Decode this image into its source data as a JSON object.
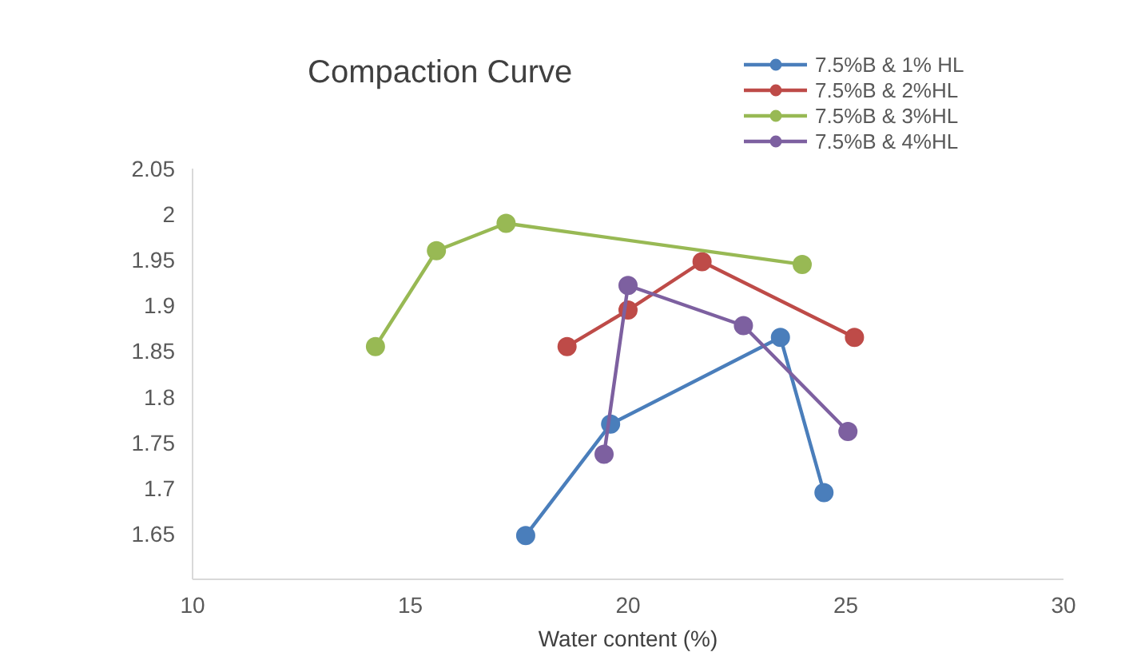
{
  "chart_data": {
    "type": "line",
    "title": "Compaction Curve",
    "xlabel": "Water content (%)",
    "xlim": [
      10,
      30
    ],
    "xticks": [
      10,
      15,
      20,
      25,
      30
    ],
    "ylim": [
      1.6,
      2.05
    ],
    "yticks": [
      1.65,
      1.7,
      1.75,
      1.8,
      1.85,
      1.9,
      1.95,
      2,
      2.05
    ],
    "grid": false,
    "legend": "top right",
    "marker": "circle",
    "line_style": "solid",
    "series": [
      {
        "name": "7.5%B & 1% HL",
        "color": "#4a7ebb",
        "x": [
          17.65,
          19.6,
          23.5,
          24.5
        ],
        "values": [
          1.648,
          1.77,
          1.865,
          1.695
        ]
      },
      {
        "name": "7.5%B & 2%HL",
        "color": "#be4b48",
        "x": [
          18.6,
          20.0,
          21.7,
          25.2
        ],
        "values": [
          1.855,
          1.895,
          1.948,
          1.865
        ]
      },
      {
        "name": "7.5%B & 3%HL",
        "color": "#98b954",
        "x": [
          14.2,
          15.6,
          17.2,
          24.0
        ],
        "values": [
          1.855,
          1.96,
          1.99,
          1.945
        ]
      },
      {
        "name": "7.5%B & 4%HL",
        "color": "#7d60a0",
        "x": [
          19.45,
          20.0,
          22.65,
          25.05
        ],
        "values": [
          1.737,
          1.922,
          1.878,
          1.762
        ]
      }
    ]
  }
}
